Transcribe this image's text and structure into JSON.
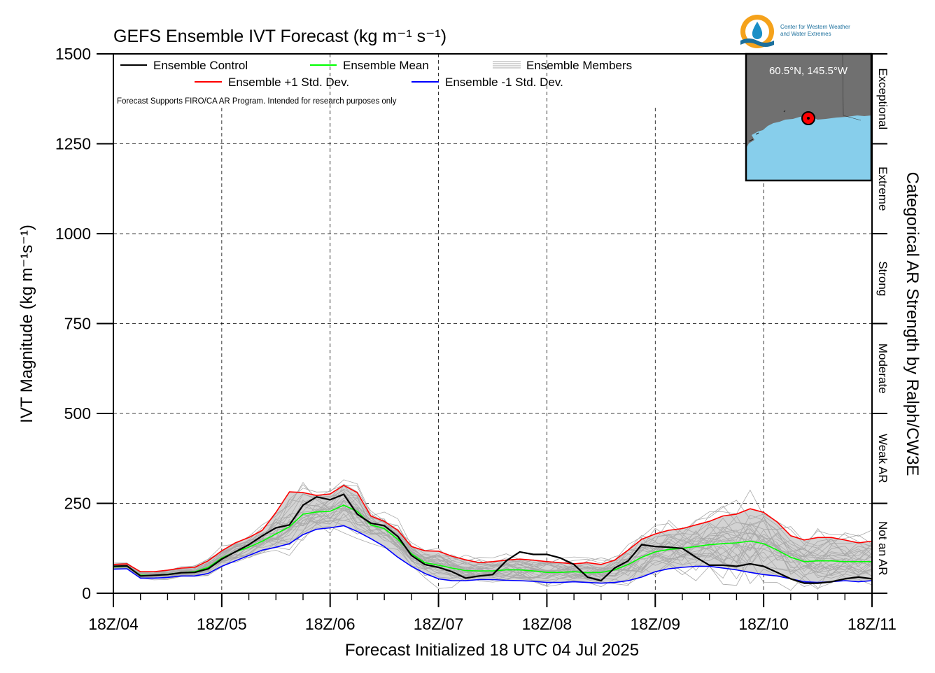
{
  "logo": {
    "line1": "Center for Western Weather",
    "line2": "and Water Extremes",
    "ring_color": "#f5a21b",
    "drop_color": "#1b8fc6",
    "wave_color": "#1b6f9c"
  },
  "inset": {
    "location": "60.5°N, 145.5°W",
    "land_color": "#707070",
    "sea_color": "#87ceeb",
    "marker_color": "#ff0000"
  },
  "legend": {
    "control": "Ensemble Control",
    "mean": "Ensemble Mean",
    "members": "Ensemble Members",
    "plus_sd": "Ensemble +1 Std. Dev.",
    "minus_sd": "Ensemble -1 Std. Dev.",
    "disclaimer": "Forecast Supports FIRO/CA AR Program. Intended for research purposes only"
  },
  "chart_data": {
    "type": "line",
    "title": "GEFS Ensemble IVT Forecast (kg m⁻¹ s⁻¹)",
    "xlabel": "Forecast Initialized 18 UTC 04 Jul 2025",
    "ylabel": "IVT Magnitude (kg m⁻¹s⁻¹)",
    "right_label": "Categorical AR Strength by Ralph/CW3E",
    "x_unit": "forecast hour (6-hourly)",
    "xlim": [
      0,
      168
    ],
    "ylim": [
      0,
      1500
    ],
    "x_ticks": [
      0,
      24,
      48,
      72,
      96,
      120,
      144,
      168
    ],
    "x_tick_labels": [
      "18Z/04",
      "18Z/05",
      "18Z/06",
      "18Z/07",
      "18Z/08",
      "18Z/09",
      "18Z/10",
      "18Z/11"
    ],
    "y_ticks": [
      0,
      250,
      500,
      750,
      1000,
      1250,
      1500
    ],
    "y_tick_labels": [
      "0",
      "250",
      "500",
      "750",
      "1000",
      "1250",
      "1500"
    ],
    "categories": [
      {
        "label": "Not an AR",
        "from": 0,
        "to": 250
      },
      {
        "label": "Weak AR",
        "from": 250,
        "to": 500
      },
      {
        "label": "Moderate",
        "from": 500,
        "to": 750
      },
      {
        "label": "Strong",
        "from": 750,
        "to": 1000
      },
      {
        "label": "Extreme",
        "from": 1000,
        "to": 1250
      },
      {
        "label": "Exceptional",
        "from": 1250,
        "to": 1500
      }
    ],
    "grid": true,
    "legend_position": "top-left",
    "x": [
      0,
      3,
      6,
      9,
      12,
      15,
      18,
      21,
      24,
      27,
      30,
      33,
      36,
      39,
      42,
      45,
      48,
      51,
      54,
      57,
      60,
      63,
      66,
      69,
      72,
      75,
      78,
      81,
      84,
      87,
      90,
      93,
      96,
      99,
      102,
      105,
      108,
      111,
      114,
      117,
      120,
      123,
      126,
      129,
      132,
      135,
      138,
      141,
      144,
      147,
      150,
      153,
      156,
      159,
      162,
      165,
      168
    ],
    "series": [
      {
        "name": "Ensemble +1 Std. Dev.",
        "color": "#ff0000",
        "values": [
          80,
          82,
          60,
          60,
          64,
          70,
          72,
          90,
          118,
          140,
          155,
          175,
          225,
          282,
          280,
          272,
          276,
          300,
          280,
          215,
          200,
          175,
          130,
          118,
          117,
          103,
          93,
          85,
          88,
          92,
          95,
          92,
          88,
          85,
          82,
          85,
          80,
          92,
          120,
          150,
          165,
          175,
          180,
          190,
          200,
          215,
          220,
          235,
          225,
          198,
          160,
          148,
          155,
          155,
          148,
          140,
          145
        ]
      },
      {
        "name": "Ensemble Mean",
        "color": "#00ff00",
        "values": [
          73,
          75,
          50,
          50,
          53,
          57,
          60,
          72,
          98,
          115,
          128,
          145,
          165,
          185,
          220,
          226,
          228,
          245,
          228,
          190,
          180,
          150,
          110,
          85,
          78,
          70,
          63,
          62,
          62,
          65,
          65,
          62,
          58,
          58,
          60,
          57,
          58,
          65,
          80,
          100,
          115,
          122,
          125,
          130,
          135,
          138,
          140,
          145,
          138,
          120,
          100,
          88,
          90,
          90,
          88,
          88,
          88
        ]
      },
      {
        "name": "Ensemble -1 Std. Dev.",
        "color": "#0000ff",
        "values": [
          67,
          68,
          42,
          42,
          44,
          48,
          48,
          55,
          75,
          90,
          105,
          120,
          128,
          138,
          163,
          178,
          182,
          188,
          172,
          152,
          130,
          100,
          75,
          55,
          40,
          35,
          35,
          38,
          38,
          36,
          35,
          33,
          30,
          30,
          32,
          30,
          28,
          30,
          35,
          45,
          60,
          68,
          72,
          75,
          75,
          70,
          65,
          58,
          52,
          48,
          40,
          32,
          30,
          32,
          35,
          32,
          35
        ]
      },
      {
        "name": "Ensemble Control",
        "color": "#000000",
        "values": [
          75,
          76,
          48,
          50,
          52,
          57,
          58,
          68,
          95,
          115,
          135,
          160,
          182,
          190,
          245,
          268,
          260,
          275,
          220,
          195,
          188,
          158,
          105,
          80,
          72,
          60,
          42,
          48,
          52,
          90,
          115,
          108,
          108,
          98,
          80,
          45,
          35,
          70,
          90,
          135,
          130,
          128,
          125,
          100,
          78,
          78,
          75,
          82,
          75,
          58,
          40,
          28,
          28,
          32,
          40,
          45,
          40
        ]
      }
    ]
  }
}
